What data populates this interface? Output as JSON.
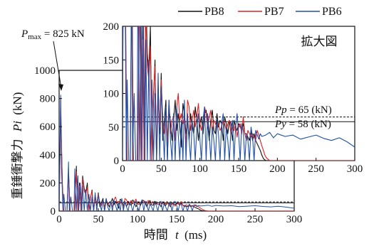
{
  "chart_data": [
    {
      "panel": "main",
      "type": "line",
      "xlabel": "時間",
      "xlabel_var": "t",
      "xlabel_unit": "(ms)",
      "ylabel": "重錘衝撃力",
      "ylabel_var": "Pi",
      "ylabel_unit": "(kN)",
      "xlim": [
        0,
        300
      ],
      "ylim": [
        0,
        1000
      ],
      "x_ticks": [
        "0",
        "50",
        "100",
        "150",
        "200",
        "250",
        "300"
      ],
      "y_ticks": [
        "0",
        "200",
        "400",
        "600",
        "800",
        "1000"
      ],
      "legend": {
        "placement": "top-right",
        "entries": [
          "PB8",
          "PB7",
          "PB6"
        ]
      },
      "reference_lines": [
        {
          "label": "Pp = 65 (kN)",
          "value": 65,
          "style": "dashed"
        },
        {
          "label": "Py = 58 (kN)",
          "value": 58,
          "style": "solid"
        }
      ],
      "annotation": {
        "text_symbol": "P",
        "text_sub": "max",
        "text_rest": " = 825 kN",
        "x": 2,
        "y": 825
      }
    },
    {
      "panel": "inset",
      "type": "line",
      "title": "拡大図",
      "xlim": [
        0,
        300
      ],
      "ylim": [
        0,
        200
      ],
      "x_ticks": [
        "0",
        "50",
        "100",
        "150",
        "200",
        "250",
        "300"
      ],
      "y_ticks": [
        "0",
        "50",
        "100",
        "150",
        "200"
      ],
      "reference_lines": [
        {
          "label_symbol": "Pp",
          "label_rest": " = 65 (kN)",
          "value": 65,
          "style": "dashed"
        },
        {
          "label_symbol": "Py",
          "label_rest": " = 58 (kN)",
          "value": 58,
          "style": "solid"
        }
      ]
    }
  ],
  "series": [
    {
      "name": "PB8",
      "color": "#111111",
      "x": [
        0,
        2,
        4,
        5,
        7,
        9,
        10,
        12,
        14,
        16,
        18,
        20,
        22,
        24,
        26,
        28,
        30,
        32,
        34,
        36,
        38,
        40,
        42,
        44,
        46,
        48,
        50,
        52,
        54,
        56,
        58,
        60,
        62,
        64,
        66,
        68,
        70,
        72,
        74,
        76,
        78,
        80,
        82,
        84,
        86,
        88,
        90,
        92,
        94,
        96,
        98,
        100,
        102,
        104,
        106,
        108,
        110,
        112,
        114,
        116,
        118,
        120,
        122,
        124,
        126,
        128,
        130,
        132,
        134,
        136,
        138,
        140,
        142,
        144,
        146,
        148,
        150,
        152,
        154,
        156,
        158,
        160,
        162,
        164,
        166,
        168,
        170,
        172,
        174,
        176,
        178,
        180,
        182,
        185,
        190,
        200,
        250,
        300
      ],
      "y": [
        0,
        700,
        240,
        0,
        0,
        0,
        0,
        280,
        0,
        0,
        0,
        0,
        320,
        0,
        200,
        0,
        250,
        160,
        130,
        200,
        0,
        90,
        150,
        0,
        110,
        40,
        130,
        30,
        60,
        90,
        0,
        80,
        55,
        30,
        60,
        90,
        45,
        70,
        50,
        20,
        85,
        70,
        40,
        60,
        30,
        70,
        50,
        40,
        80,
        60,
        30,
        55,
        65,
        40,
        70,
        75,
        55,
        30,
        60,
        75,
        45,
        40,
        70,
        50,
        60,
        55,
        30,
        65,
        55,
        40,
        60,
        55,
        30,
        60,
        50,
        45,
        55,
        50,
        45,
        55,
        40,
        40,
        35,
        30,
        45,
        30,
        40,
        30,
        25,
        20,
        15,
        8,
        3,
        0,
        0,
        0,
        0,
        0
      ]
    },
    {
      "name": "PB7",
      "color": "#e02020",
      "x": [
        0,
        2,
        4,
        6,
        8,
        10,
        12,
        14,
        16,
        18,
        20,
        22,
        24,
        26,
        28,
        30,
        32,
        34,
        36,
        38,
        40,
        42,
        44,
        46,
        48,
        50,
        52,
        54,
        56,
        58,
        60,
        62,
        64,
        66,
        68,
        70,
        72,
        74,
        76,
        78,
        80,
        82,
        84,
        86,
        88,
        90,
        92,
        94,
        96,
        98,
        100,
        102,
        104,
        106,
        108,
        110,
        112,
        114,
        116,
        118,
        120,
        122,
        124,
        126,
        128,
        130,
        132,
        134,
        136,
        138,
        140,
        142,
        144,
        146,
        148,
        150,
        152,
        154,
        156,
        158,
        160,
        162,
        164,
        166,
        168,
        170,
        172,
        174,
        176,
        178,
        180,
        182,
        184,
        186,
        188,
        190,
        200,
        250,
        300
      ],
      "y": [
        0,
        800,
        200,
        0,
        0,
        0,
        300,
        0,
        0,
        0,
        0,
        280,
        0,
        180,
        0,
        230,
        140,
        120,
        170,
        0,
        100,
        140,
        0,
        90,
        50,
        120,
        60,
        40,
        70,
        30,
        90,
        40,
        60,
        65,
        30,
        80,
        100,
        60,
        70,
        55,
        65,
        20,
        90,
        80,
        45,
        60,
        75,
        50,
        65,
        85,
        55,
        45,
        60,
        80,
        70,
        50,
        65,
        75,
        40,
        60,
        55,
        50,
        55,
        45,
        50,
        60,
        55,
        45,
        55,
        60,
        40,
        50,
        45,
        55,
        35,
        50,
        55,
        40,
        65,
        40,
        30,
        45,
        40,
        35,
        40,
        35,
        30,
        45,
        38,
        30,
        22,
        15,
        8,
        4,
        2,
        0,
        0,
        0,
        0
      ]
    },
    {
      "name": "PB6",
      "color": "#1f4fa8",
      "x": [
        0,
        2,
        3,
        5,
        6,
        8,
        10,
        12,
        13,
        15,
        17,
        19,
        20,
        22,
        24,
        25,
        27,
        29,
        30,
        32,
        34,
        36,
        38,
        40,
        42,
        44,
        46,
        48,
        50,
        52,
        54,
        56,
        58,
        60,
        62,
        64,
        66,
        68,
        70,
        72,
        74,
        76,
        78,
        80,
        82,
        84,
        86,
        88,
        90,
        92,
        94,
        96,
        98,
        100,
        102,
        104,
        106,
        108,
        110,
        112,
        114,
        116,
        118,
        120,
        122,
        124,
        126,
        128,
        130,
        132,
        134,
        136,
        138,
        140,
        142,
        144,
        146,
        148,
        150,
        152,
        154,
        156,
        158,
        160,
        162,
        164,
        166,
        168,
        170,
        172,
        174,
        176,
        178,
        180,
        185,
        190,
        195,
        200,
        210,
        220,
        230,
        240,
        250,
        260,
        270,
        280,
        290,
        300
      ],
      "y": [
        0,
        825,
        300,
        0,
        120,
        0,
        0,
        350,
        0,
        100,
        0,
        0,
        300,
        0,
        250,
        0,
        200,
        0,
        180,
        0,
        150,
        0,
        120,
        0,
        100,
        0,
        130,
        0,
        110,
        60,
        0,
        80,
        0,
        90,
        30,
        0,
        70,
        0,
        80,
        40,
        0,
        60,
        0,
        90,
        0,
        70,
        30,
        0,
        60,
        40,
        0,
        50,
        70,
        30,
        0,
        60,
        80,
        0,
        70,
        40,
        0,
        50,
        30,
        0,
        60,
        40,
        0,
        55,
        70,
        0,
        50,
        30,
        0,
        45,
        60,
        0,
        50,
        70,
        40,
        0,
        55,
        45,
        0,
        40,
        30,
        0,
        50,
        35,
        0,
        45,
        38,
        32,
        40,
        36,
        38,
        42,
        34,
        40,
        36,
        38,
        32,
        35,
        38,
        33,
        30,
        34,
        28,
        20
      ]
    }
  ]
}
